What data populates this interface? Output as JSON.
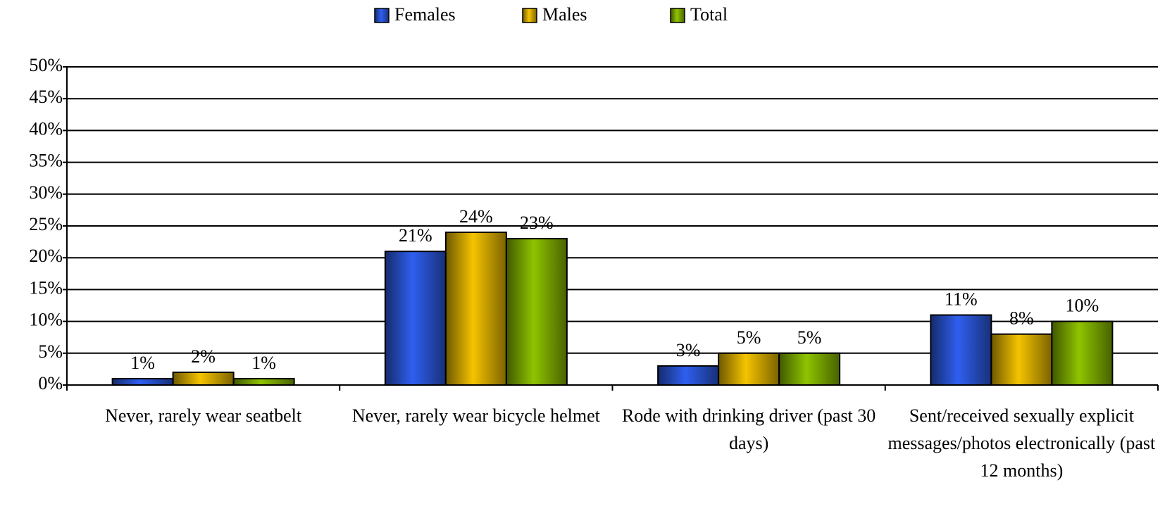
{
  "chart_data": {
    "type": "bar",
    "categories": [
      "Never, rarely wear seatbelt",
      "Never, rarely wear bicycle helmet",
      "Rode with drinking driver (past 30 days)",
      "Sent/received sexually explicit messages/photos electronically (past 12 months)"
    ],
    "series": [
      {
        "name": "Females",
        "color": "#2f5ff0",
        "values": [
          1,
          21,
          3,
          11
        ],
        "value_labels": [
          "1%",
          "21%",
          "3%",
          "11%"
        ]
      },
      {
        "name": "Males",
        "color": "#f5c400",
        "values": [
          2,
          24,
          5,
          8
        ],
        "value_labels": [
          "2%",
          "24%",
          "5%",
          "8%"
        ]
      },
      {
        "name": "Total",
        "color": "#8fc400",
        "values": [
          1,
          23,
          5,
          10
        ],
        "value_labels": [
          "1%",
          "23%",
          "5%",
          "10%"
        ]
      }
    ],
    "ylim": [
      0,
      50
    ],
    "yticks": [
      {
        "value": 0,
        "label": "0%"
      },
      {
        "value": 5,
        "label": "5%"
      },
      {
        "value": 10,
        "label": "10%"
      },
      {
        "value": 15,
        "label": "15%"
      },
      {
        "value": 20,
        "label": "20%"
      },
      {
        "value": 25,
        "label": "25%"
      },
      {
        "value": 30,
        "label": "30%"
      },
      {
        "value": 35,
        "label": "35%"
      },
      {
        "value": 40,
        "label": "40%"
      },
      {
        "value": 45,
        "label": "45%"
      },
      {
        "value": 50,
        "label": "50%"
      }
    ],
    "grid": true,
    "legend": "top"
  }
}
